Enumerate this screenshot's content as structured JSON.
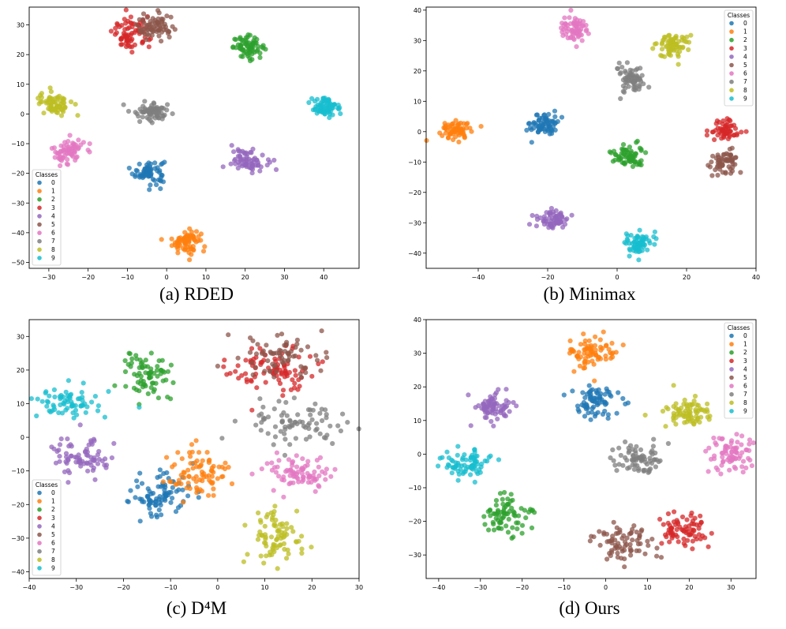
{
  "figure": {
    "colors": {
      "0": "#1f77b4",
      "1": "#ff7f0e",
      "2": "#2ca02c",
      "3": "#d62728",
      "4": "#9467bd",
      "5": "#8c564b",
      "6": "#e377c2",
      "7": "#7f7f7f",
      "8": "#bcbd22",
      "9": "#17becf"
    }
  },
  "chart_data": [
    {
      "type": "scatter",
      "caption": "(a) RDED",
      "xlim": [
        -35,
        49
      ],
      "ylim": [
        -52,
        36
      ],
      "xticks": [
        -30,
        -20,
        -10,
        0,
        10,
        20,
        30,
        40
      ],
      "yticks": [
        -50,
        -40,
        -30,
        -20,
        -10,
        0,
        10,
        20,
        30
      ],
      "legend": {
        "title": "Classes",
        "position": "lower-left",
        "labels": [
          "0",
          "1",
          "2",
          "3",
          "4",
          "5",
          "6",
          "7",
          "8",
          "9"
        ]
      },
      "clusters": [
        {
          "cls": "0",
          "cx": -4.5,
          "cy": -19.5,
          "sx": 2.0,
          "sy": 2.1,
          "n": 70
        },
        {
          "cls": "1",
          "cx": 5,
          "cy": -43,
          "sx": 1.8,
          "sy": 2.0,
          "n": 70
        },
        {
          "cls": "2",
          "cx": 21,
          "cy": 22.5,
          "sx": 2.0,
          "sy": 1.8,
          "n": 70
        },
        {
          "cls": "3",
          "cx": -9,
          "cy": 27,
          "sx": 2.4,
          "sy": 2.7,
          "n": 75
        },
        {
          "cls": "4",
          "cx": 21,
          "cy": -15.5,
          "sx": 2.3,
          "sy": 1.8,
          "n": 70
        },
        {
          "cls": "5",
          "cx": -3,
          "cy": 29,
          "sx": 2.4,
          "sy": 2.3,
          "n": 70
        },
        {
          "cls": "6",
          "cx": -25,
          "cy": -12.5,
          "sx": 2.0,
          "sy": 2.2,
          "n": 70
        },
        {
          "cls": "7",
          "cx": -4,
          "cy": 1,
          "sx": 2.4,
          "sy": 1.6,
          "n": 70
        },
        {
          "cls": "8",
          "cx": -28.5,
          "cy": 3.5,
          "sx": 2.0,
          "sy": 1.9,
          "n": 70
        },
        {
          "cls": "9",
          "cx": 40.5,
          "cy": 2.5,
          "sx": 2.0,
          "sy": 1.8,
          "n": 70
        }
      ]
    },
    {
      "type": "scatter",
      "caption": "(b) Minimax",
      "xlim": [
        -55,
        40
      ],
      "ylim": [
        -45,
        41
      ],
      "xticks": [
        -40,
        -20,
        0,
        20,
        40
      ],
      "yticks": [
        -40,
        -30,
        -20,
        -10,
        0,
        10,
        20,
        30,
        40
      ],
      "legend": {
        "title": "Classes",
        "position": "upper-right",
        "labels": [
          "0",
          "1",
          "2",
          "3",
          "4",
          "5",
          "6",
          "7",
          "8",
          "9"
        ]
      },
      "clusters": [
        {
          "cls": "0",
          "cx": -21,
          "cy": 2.5,
          "sx": 2.0,
          "sy": 2.0,
          "n": 70
        },
        {
          "cls": "1",
          "cx": -46.5,
          "cy": 0.5,
          "sx": 2.6,
          "sy": 1.5,
          "n": 70
        },
        {
          "cls": "2",
          "cx": 3,
          "cy": -8,
          "sx": 2.3,
          "sy": 1.8,
          "n": 70
        },
        {
          "cls": "3",
          "cx": 31,
          "cy": 0.5,
          "sx": 2.3,
          "sy": 2.0,
          "n": 60
        },
        {
          "cls": "4",
          "cx": -18.5,
          "cy": -29,
          "sx": 2.2,
          "sy": 1.5,
          "n": 70
        },
        {
          "cls": "5",
          "cx": 31,
          "cy": -10,
          "sx": 2.3,
          "sy": 1.8,
          "n": 60
        },
        {
          "cls": "6",
          "cx": -12.5,
          "cy": 34,
          "sx": 1.8,
          "sy": 1.9,
          "n": 70
        },
        {
          "cls": "7",
          "cx": 3.5,
          "cy": 17.5,
          "sx": 2.2,
          "sy": 2.1,
          "n": 70
        },
        {
          "cls": "8",
          "cx": 16,
          "cy": 28,
          "sx": 2.4,
          "sy": 2.0,
          "n": 70
        },
        {
          "cls": "9",
          "cx": 6,
          "cy": -37,
          "sx": 1.8,
          "sy": 1.9,
          "n": 70
        }
      ]
    },
    {
      "type": "scatter",
      "caption": "(c) D⁴M",
      "xlim": [
        -40,
        30
      ],
      "ylim": [
        -42,
        35
      ],
      "xticks": [
        -40,
        -30,
        -20,
        -10,
        0,
        10,
        20,
        30
      ],
      "yticks": [
        -40,
        -30,
        -20,
        -10,
        0,
        10,
        20,
        30
      ],
      "legend": {
        "title": "Classes",
        "position": "lower-left",
        "labels": [
          "0",
          "1",
          "2",
          "3",
          "4",
          "5",
          "6",
          "7",
          "8",
          "9"
        ]
      },
      "clusters": [
        {
          "cls": "0",
          "cx": -12,
          "cy": -17,
          "sx": 3.6,
          "sy": 3.6,
          "n": 90
        },
        {
          "cls": "1",
          "cx": -4,
          "cy": -11,
          "sx": 3.2,
          "sy": 3.8,
          "n": 80
        },
        {
          "cls": "2",
          "cx": -15,
          "cy": 18,
          "sx": 2.6,
          "sy": 3.6,
          "n": 75
        },
        {
          "cls": "3",
          "cx": 12,
          "cy": 20,
          "sx": 4.6,
          "sy": 3.6,
          "n": 90
        },
        {
          "cls": "4",
          "cx": -29,
          "cy": -6,
          "sx": 3.2,
          "sy": 3.0,
          "n": 75
        },
        {
          "cls": "5",
          "cx": 13,
          "cy": 24,
          "sx": 5.0,
          "sy": 3.3,
          "n": 70
        },
        {
          "cls": "6",
          "cx": 17,
          "cy": -11,
          "sx": 3.4,
          "sy": 2.5,
          "n": 80
        },
        {
          "cls": "7",
          "cx": 15,
          "cy": 5,
          "sx": 6.0,
          "sy": 3.0,
          "n": 80
        },
        {
          "cls": "8",
          "cx": 12,
          "cy": -30,
          "sx": 2.8,
          "sy": 4.0,
          "n": 80
        },
        {
          "cls": "9",
          "cx": -31,
          "cy": 10,
          "sx": 3.5,
          "sy": 2.6,
          "n": 70
        }
      ]
    },
    {
      "type": "scatter",
      "caption": "(d) Ours",
      "xlim": [
        -43,
        36
      ],
      "ylim": [
        -37,
        40
      ],
      "xticks": [
        -40,
        -30,
        -20,
        -10,
        0,
        10,
        20,
        30
      ],
      "yticks": [
        -30,
        -20,
        -10,
        0,
        10,
        20,
        30,
        40
      ],
      "legend": {
        "title": "Classes",
        "position": "upper-right",
        "labels": [
          "0",
          "1",
          "2",
          "3",
          "4",
          "5",
          "6",
          "7",
          "8",
          "9"
        ]
      },
      "clusters": [
        {
          "cls": "0",
          "cx": -3,
          "cy": 15,
          "sx": 3.0,
          "sy": 2.6,
          "n": 75
        },
        {
          "cls": "1",
          "cx": -3,
          "cy": 30.5,
          "sx": 2.8,
          "sy": 2.6,
          "n": 75
        },
        {
          "cls": "2",
          "cx": -24,
          "cy": -18.5,
          "sx": 2.6,
          "sy": 2.8,
          "n": 75
        },
        {
          "cls": "3",
          "cx": 19,
          "cy": -22.5,
          "sx": 3.0,
          "sy": 2.6,
          "n": 75
        },
        {
          "cls": "4",
          "cx": -27,
          "cy": 13.5,
          "sx": 2.4,
          "sy": 2.6,
          "n": 75
        },
        {
          "cls": "5",
          "cx": 5,
          "cy": -26.5,
          "sx": 3.6,
          "sy": 2.6,
          "n": 75
        },
        {
          "cls": "6",
          "cx": 29.5,
          "cy": 0,
          "sx": 2.5,
          "sy": 2.8,
          "n": 75
        },
        {
          "cls": "7",
          "cx": 8,
          "cy": -2,
          "sx": 3.0,
          "sy": 2.4,
          "n": 75
        },
        {
          "cls": "8",
          "cx": 19,
          "cy": 12.5,
          "sx": 3.0,
          "sy": 2.5,
          "n": 75
        },
        {
          "cls": "9",
          "cx": -34,
          "cy": -3,
          "sx": 3.0,
          "sy": 2.0,
          "n": 75
        }
      ]
    }
  ]
}
